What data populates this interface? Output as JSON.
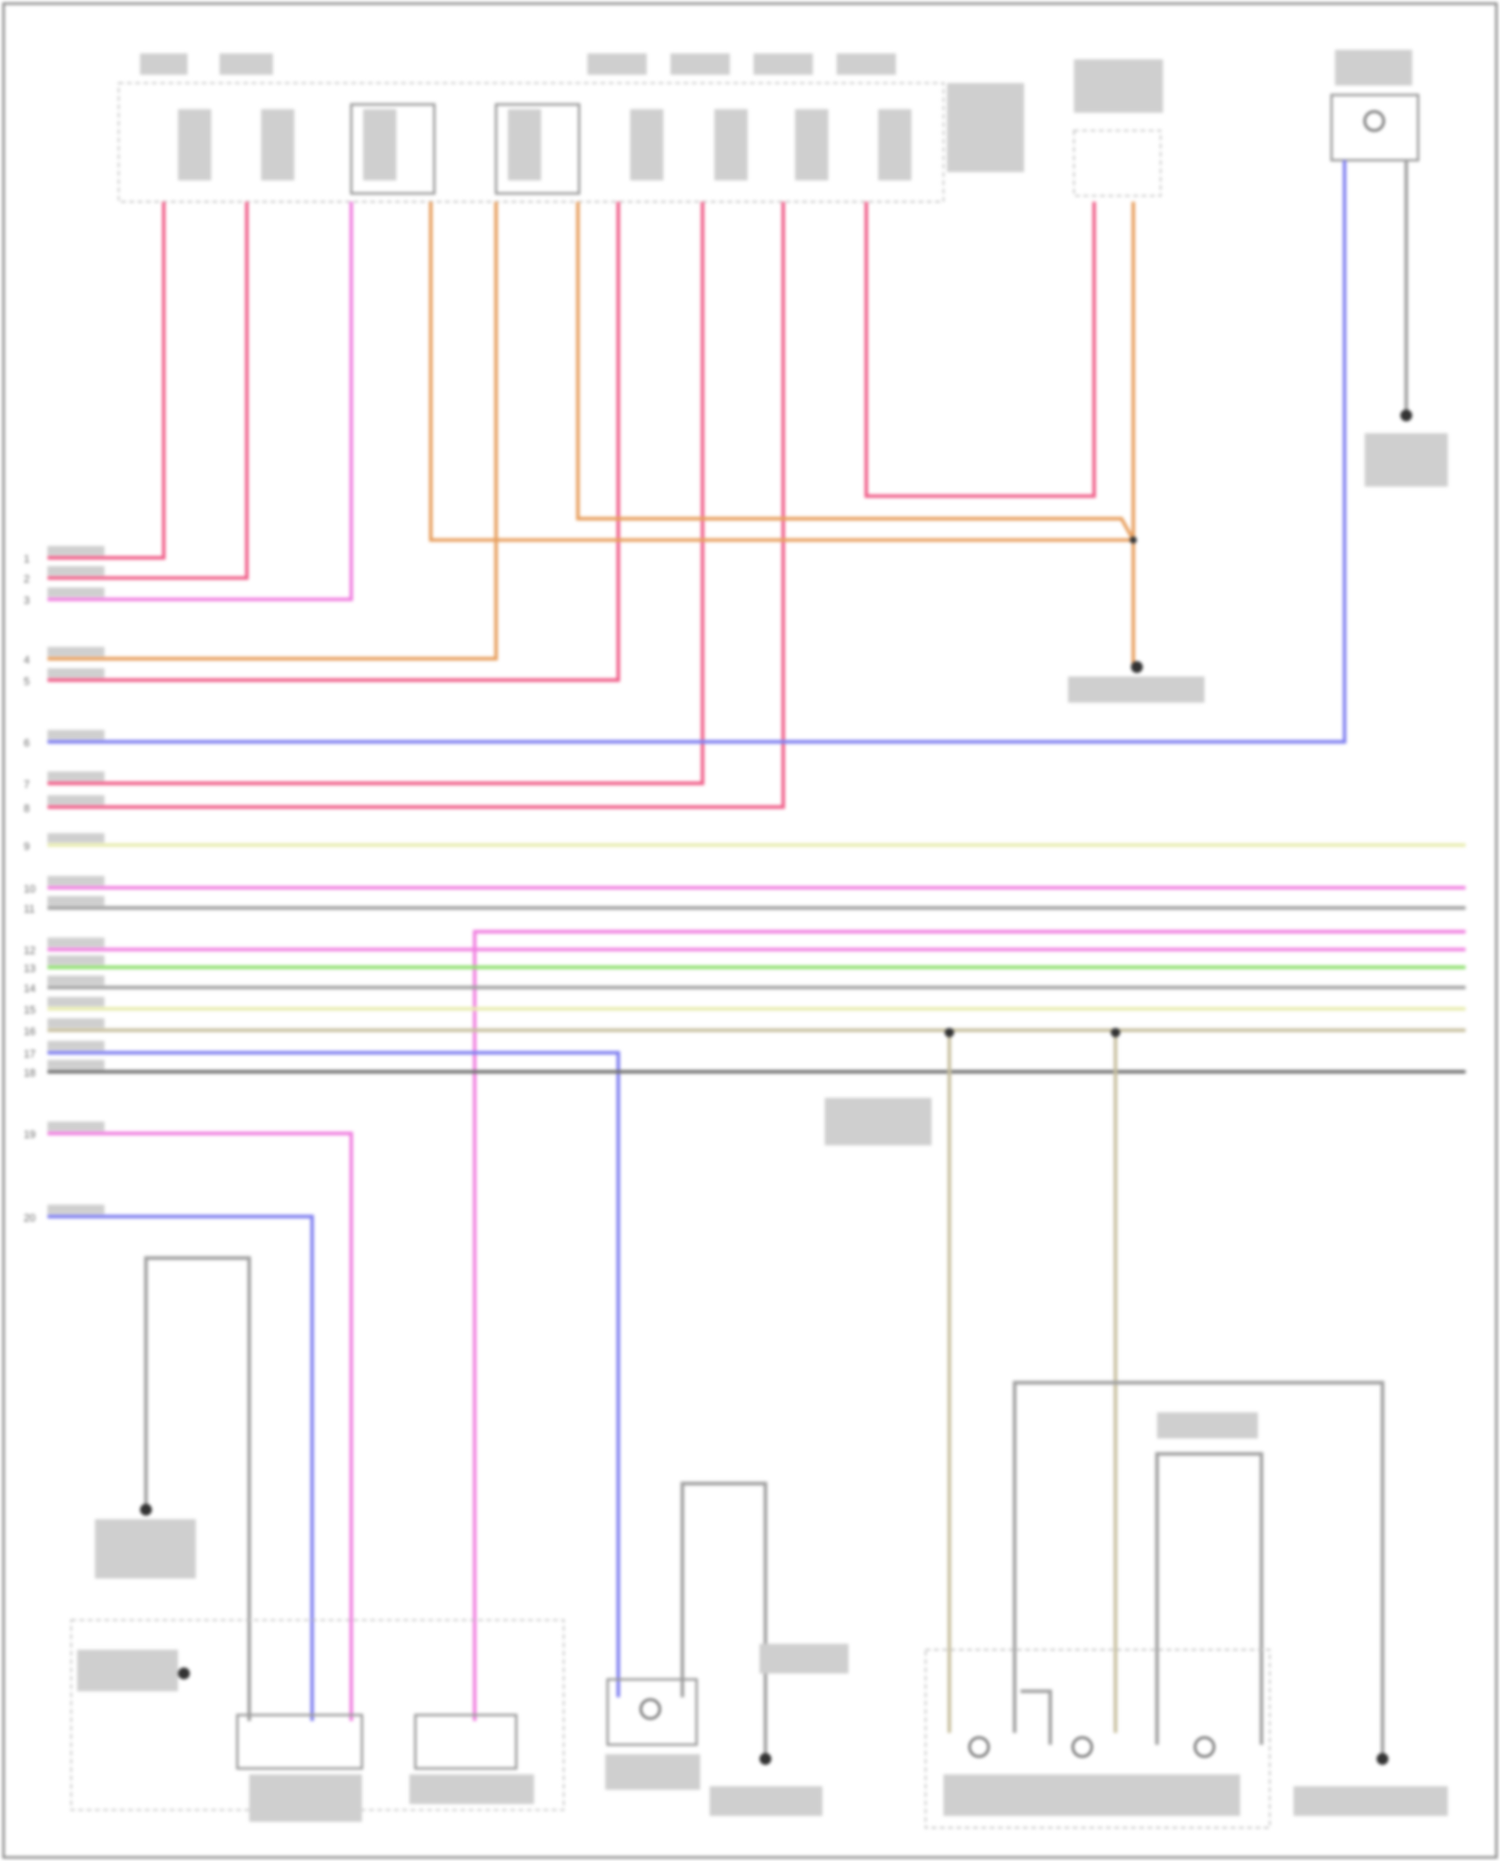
{
  "diagram": {
    "pin_numbers": [
      "1",
      "2",
      "3",
      "4",
      "5",
      "6",
      "7",
      "8",
      "9",
      "10",
      "11",
      "12",
      "13",
      "14",
      "15",
      "16",
      "17",
      "18",
      "19",
      "20"
    ],
    "wire_colors": {
      "red": "#f0608a",
      "orange": "#e8a060",
      "pink": "#f080e0",
      "blue": "#8080f0",
      "green": "#90e070",
      "yellow": "#e8ecb0",
      "gray": "#a0a0a0",
      "tan": "#c8c0a0",
      "dark_gray": "#707070"
    }
  }
}
